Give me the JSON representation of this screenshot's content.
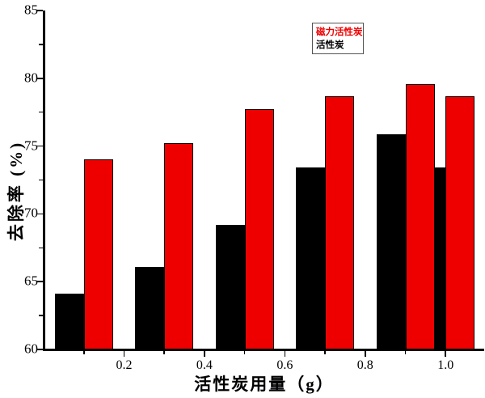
{
  "chart_data": {
    "type": "bar",
    "title": "",
    "xlabel": "活性炭用量（g）",
    "ylabel": "去除率 (%)",
    "categories": [
      0.1,
      0.3,
      0.5,
      0.7,
      0.9,
      1.0
    ],
    "series": [
      {
        "name": "活性炭",
        "color": "#000000",
        "values": [
          64.1,
          66.1,
          69.2,
          73.4,
          75.9,
          73.4
        ]
      },
      {
        "name": "磁力活性炭",
        "color": "#ee0000",
        "values": [
          74.0,
          75.2,
          77.7,
          78.7,
          79.6,
          78.7
        ]
      }
    ],
    "xlim": [
      0,
      1.094
    ],
    "ylim": [
      60,
      85
    ],
    "y_major_ticks": [
      60,
      65,
      70,
      75,
      80,
      85
    ],
    "y_tick_labels": [
      "60",
      "65",
      "70",
      "75",
      "80",
      "85"
    ],
    "y_minor_ticks": [
      62.5,
      67.5,
      72.5,
      77.5,
      82.5
    ],
    "x_major_ticks": [
      0.2,
      0.4,
      0.6,
      0.8,
      1.0
    ],
    "x_tick_labels": [
      "0.2",
      "0.4",
      "0.6",
      "0.8",
      "1.0"
    ],
    "x_minor_ticks": [
      0.1,
      0.3,
      0.5,
      0.7,
      0.9
    ],
    "grid": false,
    "legend_position": "top-right-inside",
    "legend": [
      {
        "label": "磁力活性炭",
        "color": "#ee0000"
      },
      {
        "label": "活性炭",
        "color": "#000000"
      }
    ],
    "bar_outline_color": "#000000",
    "background_color": "#ffffff"
  }
}
